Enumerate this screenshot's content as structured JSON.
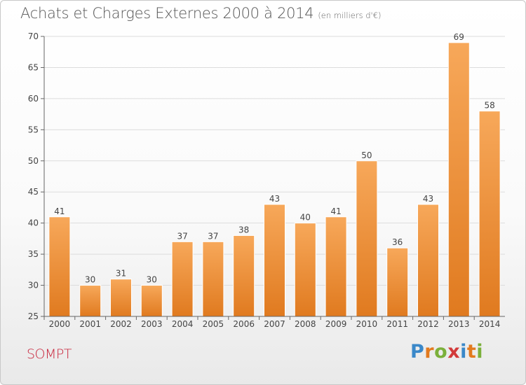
{
  "chart_data": {
    "type": "bar",
    "title": "Achats et Charges Externes 2000 à 2014",
    "subtitle": "(en milliers d'€)",
    "categories": [
      "2000",
      "2001",
      "2002",
      "2003",
      "2004",
      "2005",
      "2006",
      "2007",
      "2008",
      "2009",
      "2010",
      "2011",
      "2012",
      "2013",
      "2014"
    ],
    "values": [
      41,
      30,
      31,
      30,
      37,
      37,
      38,
      43,
      40,
      41,
      50,
      36,
      43,
      69,
      58
    ],
    "ylim": [
      25,
      70
    ],
    "yticks": [
      25,
      30,
      35,
      40,
      45,
      50,
      55,
      60,
      65,
      70
    ],
    "grid": true,
    "bar_color_light": "#f7a85a",
    "bar_color_dark": "#e07a1f"
  },
  "location": "SOMPT",
  "logo": {
    "text": "Proxiti"
  }
}
